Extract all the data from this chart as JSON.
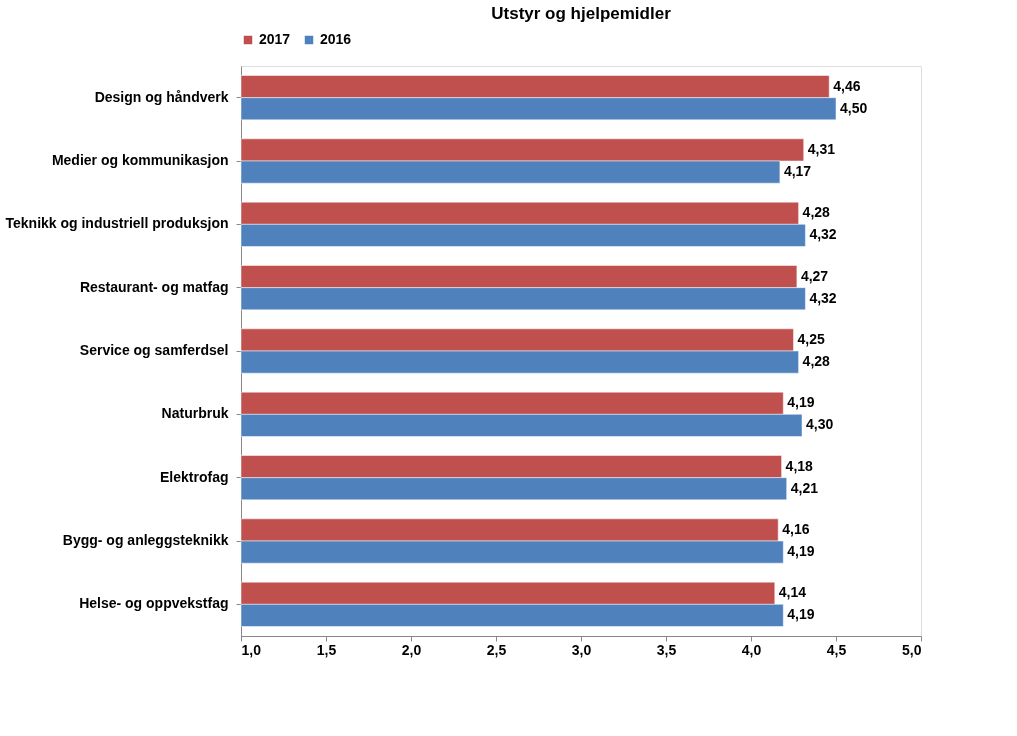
{
  "chart_data": {
    "type": "bar",
    "orientation": "horizontal",
    "title": "Utstyr og hjelpemidler",
    "categories": [
      "Design og håndverk",
      "Medier og kommunikasjon",
      "Teknikk og industriell produksjon",
      "Restaurant- og matfag",
      "Service og samferdsel",
      "Naturbruk",
      "Elektrofag",
      "Bygg- og anleggsteknikk",
      "Helse- og oppvekstfag"
    ],
    "series": [
      {
        "name": "2017",
        "color": "#c0504d",
        "values": [
          4.46,
          4.31,
          4.28,
          4.27,
          4.25,
          4.19,
          4.18,
          4.16,
          4.14
        ],
        "value_labels": [
          "4,46",
          "4,31",
          "4,28",
          "4,27",
          "4,25",
          "4,19",
          "4,18",
          "4,16",
          "4,14"
        ]
      },
      {
        "name": "2016",
        "color": "#4f81bd",
        "values": [
          4.5,
          4.17,
          4.32,
          4.32,
          4.28,
          4.3,
          4.21,
          4.19,
          4.19
        ],
        "value_labels": [
          "4,50",
          "4,17",
          "4,32",
          "4,32",
          "4,28",
          "4,30",
          "4,21",
          "4,19",
          "4,19"
        ]
      }
    ],
    "xlim": [
      1.0,
      5.0
    ],
    "xticks": [
      {
        "value": 1.0,
        "label": "1,0"
      },
      {
        "value": 1.5,
        "label": "1,5"
      },
      {
        "value": 2.0,
        "label": "2,0"
      },
      {
        "value": 2.5,
        "label": "2,5"
      },
      {
        "value": 3.0,
        "label": "3,0"
      },
      {
        "value": 3.5,
        "label": "3,5"
      },
      {
        "value": 4.0,
        "label": "4,0"
      },
      {
        "value": 4.5,
        "label": "4,5"
      },
      {
        "value": 5.0,
        "label": "5,0"
      }
    ],
    "grid": false,
    "legend": "top"
  }
}
